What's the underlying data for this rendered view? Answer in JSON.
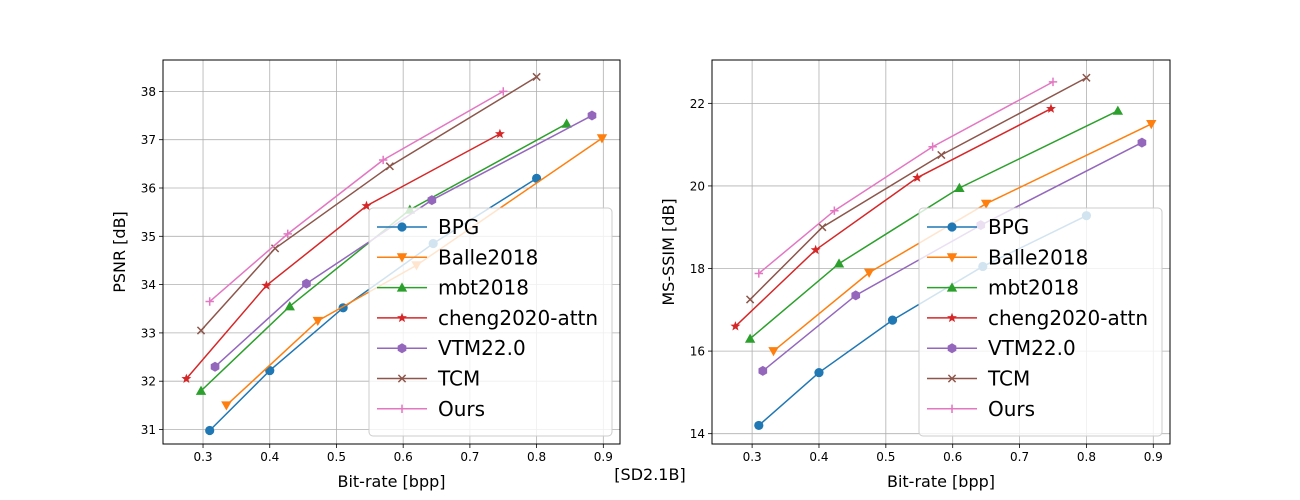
{
  "figure_caption": "[SD2.1B]",
  "colors": {
    "BPG": "#1f77b4",
    "Balle2018": "#ff7f0e",
    "mbt2018": "#2ca02c",
    "cheng2020-attn": "#d62728",
    "VTM22.0": "#9467bd",
    "TCM": "#8c564b",
    "Ours": "#e377c2",
    "grid": "#b0b0b0"
  },
  "chart_data": [
    {
      "type": "line",
      "xlabel": "Bit-rate [bpp]",
      "ylabel": "PSNR [dB]",
      "xlim": [
        0.24,
        0.925
      ],
      "ylim": [
        30.7,
        38.65
      ],
      "xticks": [
        0.3,
        0.4,
        0.5,
        0.6,
        0.7,
        0.8,
        0.9
      ],
      "xtick_labels": [
        "0.3",
        "0.4",
        "0.5",
        "0.6",
        "0.7",
        "0.8",
        "0.9"
      ],
      "yticks": [
        31,
        32,
        33,
        34,
        35,
        36,
        37,
        38
      ],
      "ytick_labels": [
        "31",
        "32",
        "33",
        "34",
        "35",
        "36",
        "37",
        "38"
      ],
      "grid": true,
      "legend_position": "lower-right",
      "series": [
        {
          "name": "BPG",
          "marker": "circle",
          "x": [
            0.31,
            0.4,
            0.51,
            0.645,
            0.8
          ],
          "y": [
            30.98,
            32.22,
            33.52,
            34.85,
            36.2
          ]
        },
        {
          "name": "Balle2018",
          "marker": "triangle-down",
          "x": [
            0.335,
            0.472,
            0.62,
            0.898
          ],
          "y": [
            31.5,
            33.25,
            34.4,
            37.03
          ]
        },
        {
          "name": "mbt2018",
          "marker": "triangle-up",
          "x": [
            0.297,
            0.43,
            0.61,
            0.845
          ],
          "y": [
            31.8,
            33.55,
            35.55,
            37.33
          ]
        },
        {
          "name": "cheng2020-attn",
          "marker": "star",
          "x": [
            0.275,
            0.395,
            0.545,
            0.745
          ],
          "y": [
            32.05,
            33.98,
            35.63,
            37.12
          ]
        },
        {
          "name": "VTM22.0",
          "marker": "hexagon",
          "x": [
            0.318,
            0.455,
            0.643,
            0.883
          ],
          "y": [
            32.3,
            34.02,
            35.75,
            37.5
          ]
        },
        {
          "name": "TCM",
          "marker": "x",
          "x": [
            0.297,
            0.408,
            0.58,
            0.8
          ],
          "y": [
            33.05,
            34.75,
            36.45,
            38.3
          ]
        },
        {
          "name": "Ours",
          "marker": "plus",
          "x": [
            0.31,
            0.427,
            0.57,
            0.75
          ],
          "y": [
            33.65,
            35.05,
            36.58,
            38.0
          ]
        }
      ]
    },
    {
      "type": "line",
      "xlabel": "Bit-rate [bpp]",
      "ylabel": "MS-SSIM [dB]",
      "xlim": [
        0.24,
        0.925
      ],
      "ylim": [
        13.75,
        23.05
      ],
      "xticks": [
        0.3,
        0.4,
        0.5,
        0.6,
        0.7,
        0.8,
        0.9
      ],
      "xtick_labels": [
        "0.3",
        "0.4",
        "0.5",
        "0.6",
        "0.7",
        "0.8",
        "0.9"
      ],
      "yticks": [
        14,
        16,
        18,
        20,
        22
      ],
      "ytick_labels": [
        "14",
        "16",
        "18",
        "20",
        "22"
      ],
      "grid": true,
      "legend_position": "lower-right",
      "series": [
        {
          "name": "BPG",
          "marker": "circle",
          "x": [
            0.31,
            0.4,
            0.51,
            0.645,
            0.8
          ],
          "y": [
            14.2,
            15.48,
            16.75,
            18.05,
            19.28
          ]
        },
        {
          "name": "Balle2018",
          "marker": "triangle-down",
          "x": [
            0.332,
            0.475,
            0.65,
            0.897
          ],
          "y": [
            16.0,
            17.9,
            19.57,
            21.5
          ]
        },
        {
          "name": "mbt2018",
          "marker": "triangle-up",
          "x": [
            0.297,
            0.43,
            0.61,
            0.847
          ],
          "y": [
            16.3,
            18.12,
            19.95,
            21.82
          ]
        },
        {
          "name": "cheng2020-attn",
          "marker": "star",
          "x": [
            0.275,
            0.395,
            0.547,
            0.747
          ],
          "y": [
            16.6,
            18.45,
            20.2,
            21.87
          ]
        },
        {
          "name": "VTM22.0",
          "marker": "hexagon",
          "x": [
            0.316,
            0.455,
            0.642,
            0.883
          ],
          "y": [
            15.52,
            17.35,
            19.05,
            21.05
          ]
        },
        {
          "name": "TCM",
          "marker": "x",
          "x": [
            0.297,
            0.405,
            0.583,
            0.8
          ],
          "y": [
            17.25,
            19.0,
            20.75,
            22.62
          ]
        },
        {
          "name": "Ours",
          "marker": "plus",
          "x": [
            0.31,
            0.423,
            0.57,
            0.75
          ],
          "y": [
            17.88,
            19.4,
            20.95,
            22.52
          ]
        }
      ]
    }
  ]
}
